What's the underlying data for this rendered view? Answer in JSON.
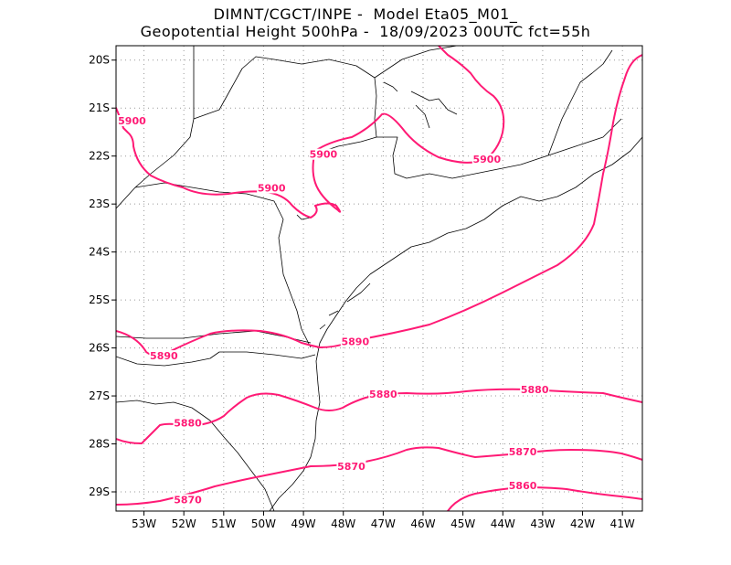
{
  "title": {
    "line1": "DIMNT/CGCT/INPE -  Model Eta05_M01_",
    "line2": "Geopotential Height 500hPa -  18/09/2023 00UTC fct=55h"
  },
  "colors": {
    "contour": "#ff1a75",
    "coast": "#000000",
    "grid": "#999999"
  },
  "axes": {
    "lon_labels": [
      "53W",
      "52W",
      "51W",
      "50W",
      "49W",
      "48W",
      "47W",
      "46W",
      "45W",
      "44W",
      "43W",
      "42W",
      "41W"
    ],
    "lat_labels": [
      "20S",
      "21S",
      "22S",
      "23S",
      "24S",
      "25S",
      "26S",
      "27S",
      "28S",
      "29S"
    ],
    "lon_range": [
      -53.7,
      -40.5
    ],
    "lat_range": [
      -29.4,
      -19.7
    ],
    "grid": true
  },
  "contours": [
    {
      "value": "5900",
      "labels": [
        {
          "text": "5900",
          "lon": -53.3,
          "lat": -21.3
        },
        {
          "text": "5900",
          "lon": -48.5,
          "lat": -22.0
        },
        {
          "text": "5900",
          "lon": -49.8,
          "lat": -22.7
        },
        {
          "text": "5900",
          "lon": -44.4,
          "lat": -22.1
        }
      ]
    },
    {
      "value": "5890",
      "labels": [
        {
          "text": "5890",
          "lon": -52.5,
          "lat": -26.2
        },
        {
          "text": "5890",
          "lon": -47.7,
          "lat": -25.9
        }
      ]
    },
    {
      "value": "5880",
      "labels": [
        {
          "text": "5880",
          "lon": -51.9,
          "lat": -27.6
        },
        {
          "text": "5880",
          "lon": -47.0,
          "lat": -27.0
        },
        {
          "text": "5880",
          "lon": -43.2,
          "lat": -26.9
        }
      ]
    },
    {
      "value": "5870",
      "labels": [
        {
          "text": "5870",
          "lon": -51.9,
          "lat": -29.2
        },
        {
          "text": "5870",
          "lon": -47.8,
          "lat": -28.5
        },
        {
          "text": "5870",
          "lon": -43.5,
          "lat": -28.2
        }
      ]
    },
    {
      "value": "5860",
      "labels": [
        {
          "text": "5860",
          "lon": -43.5,
          "lat": -28.9
        }
      ]
    }
  ]
}
